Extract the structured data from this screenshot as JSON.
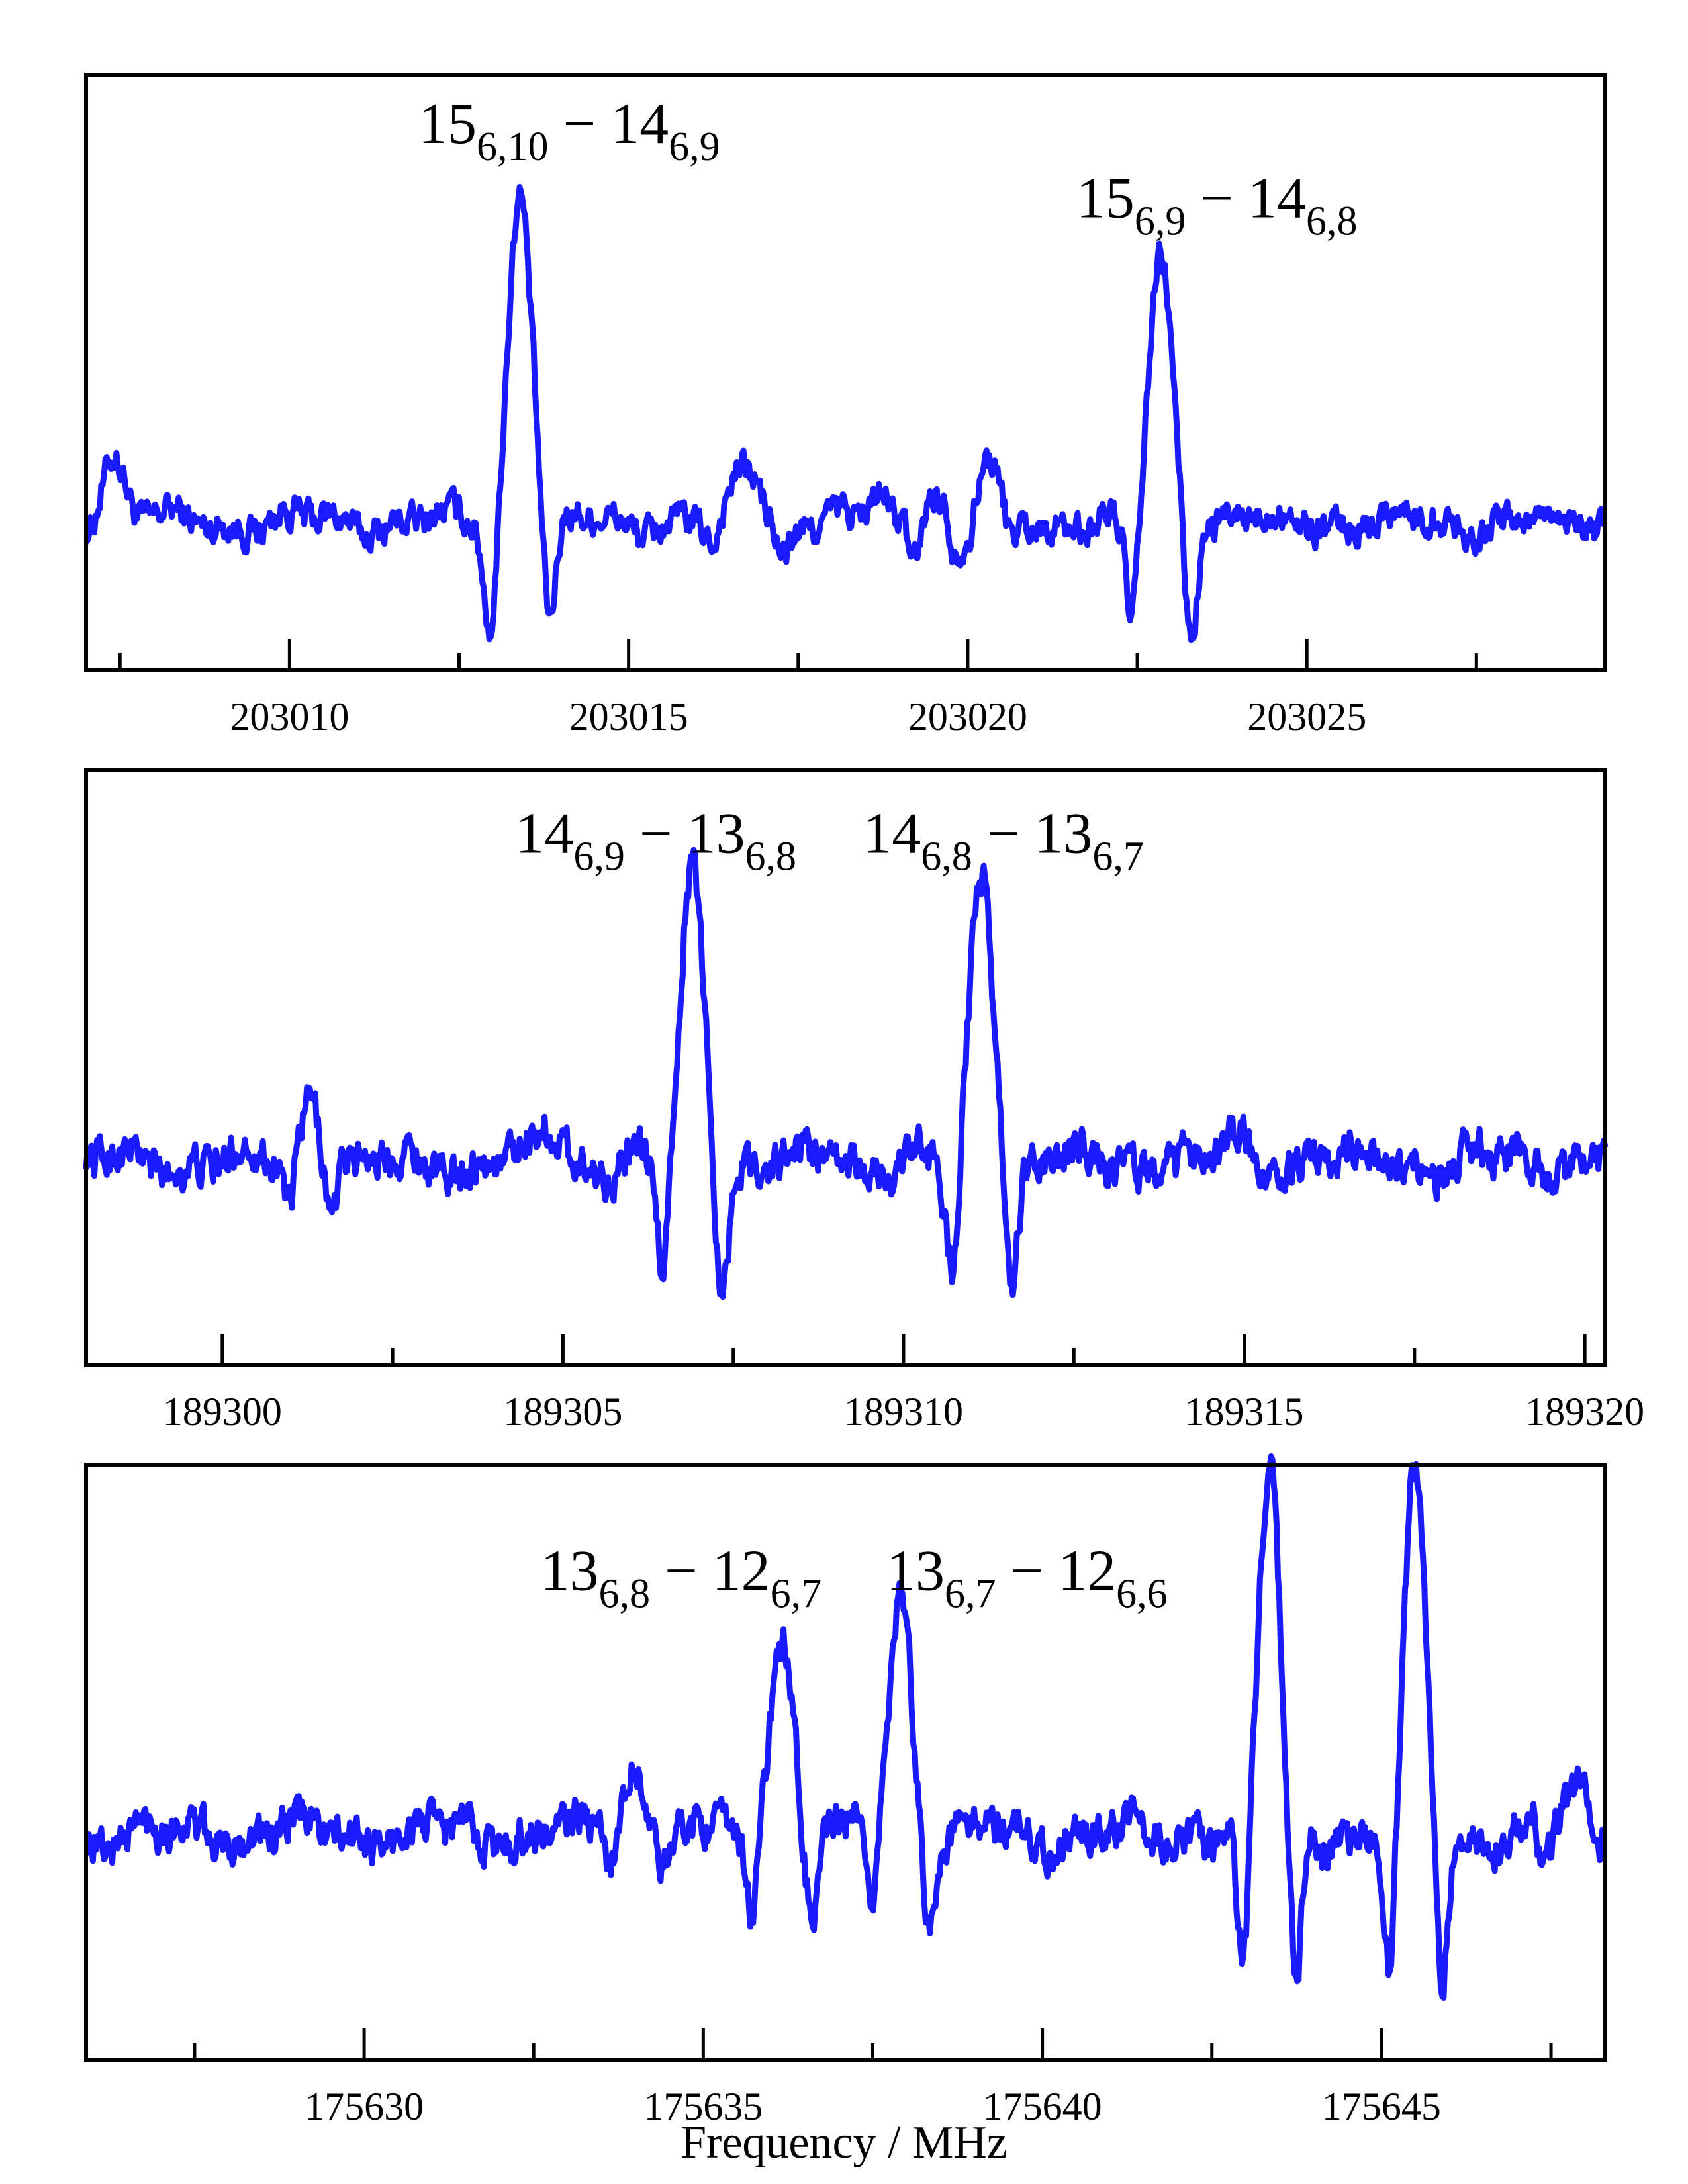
{
  "line_color": "#1a1aff",
  "xlabel": "Frequency / MHz",
  "chart_data": [
    {
      "type": "line",
      "xlim": [
        203007,
        203029.4
      ],
      "ylim": [
        -1.2,
        3.6
      ],
      "grid": false,
      "ticks_major": [
        203010,
        203015,
        203020,
        203025
      ],
      "tick_labels": [
        "203010",
        "203015",
        "203020",
        "203025"
      ],
      "ticks_minor": [
        203007.5,
        203012.5,
        203017.5,
        203022.5,
        203027.5
      ],
      "peaks": [
        {
          "x": 203013.4,
          "h": 2.7,
          "w": 0.17,
          "dip": -0.9
        },
        {
          "x": 203022.85,
          "h": 2.1,
          "w": 0.17,
          "dip": -0.9
        },
        {
          "x": 203007.4,
          "h": 0.55,
          "w": 0.17,
          "dip": 0
        },
        {
          "x": 203016.75,
          "h": 0.45,
          "w": 0.2,
          "dip": -0.25
        },
        {
          "x": 203018.7,
          "h": 0.2,
          "w": 0.12,
          "dip": 0
        },
        {
          "x": 203019.5,
          "h": 0.3,
          "w": 0.12,
          "dip": -0.25
        },
        {
          "x": 203020.3,
          "h": 0.45,
          "w": 0.13,
          "dip": -0.2
        }
      ],
      "annotations": [
        {
          "x": 203011.9,
          "y": 3.05,
          "main": "15",
          "sub": "6,10",
          "main2": "14",
          "sub2": "6,9"
        },
        {
          "x": 203021.6,
          "y": 2.45,
          "main": "15",
          "sub": "6,9",
          "main2": "14",
          "sub2": "6,8"
        }
      ]
    },
    {
      "type": "line",
      "xlim": [
        189298,
        189320.3
      ],
      "ylim": [
        -1.35,
        2.6
      ],
      "grid": false,
      "ticks_major": [
        189300,
        189305,
        189310,
        189315,
        189320
      ],
      "tick_labels": [
        "189300",
        "189305",
        "189310",
        "189315",
        "189320"
      ],
      "ticks_minor": [
        189302.5,
        189307.5,
        189312.5,
        189317.5
      ],
      "peaks": [
        {
          "x": 189306.9,
          "h": 1.9,
          "w": 0.17,
          "dip": -0.8
        },
        {
          "x": 189311.15,
          "h": 1.9,
          "w": 0.17,
          "dip": -0.8
        },
        {
          "x": 189301.3,
          "h": 0.45,
          "w": 0.12,
          "dip": -0.3
        },
        {
          "x": 189304.8,
          "h": 0.2,
          "w": 0.2,
          "dip": 0
        },
        {
          "x": 189314.8,
          "h": 0.15,
          "w": 0.2,
          "dip": 0
        }
      ],
      "annotations": [
        {
          "x": 189304.3,
          "y": 2.05,
          "main": "14",
          "sub": "6,9",
          "main2": "13",
          "sub2": "6,8"
        },
        {
          "x": 189309.4,
          "y": 2.05,
          "main": "14",
          "sub": "6,8",
          "main2": "13",
          "sub2": "6,7"
        }
      ]
    },
    {
      "type": "line",
      "xlim": [
        175625.9,
        175648.3
      ],
      "ylim": [
        -1.45,
        2.35
      ],
      "grid": false,
      "ticks_major": [
        175630,
        175635,
        175640,
        175645
      ],
      "tick_labels": [
        "175630",
        "175635",
        "175640",
        "175645"
      ],
      "ticks_minor": [
        175627.5,
        175632.5,
        175637.5,
        175642.5,
        175647.5
      ],
      "peaks": [
        {
          "x": 175636.15,
          "h": 1.3,
          "w": 0.17,
          "dip": -0.55
        },
        {
          "x": 175637.9,
          "h": 1.5,
          "w": 0.17,
          "dip": -0.55
        },
        {
          "x": 175643.35,
          "h": 2.3,
          "w": 0.15,
          "dip": -1.0
        },
        {
          "x": 175645.5,
          "h": 2.25,
          "w": 0.15,
          "dip": -1.0
        },
        {
          "x": 175634.0,
          "h": 0.45,
          "w": 0.15,
          "dip": -0.15
        },
        {
          "x": 175647.95,
          "h": 0.3,
          "w": 0.2,
          "dip": -0.2
        }
      ],
      "annotations": [
        {
          "x": 175632.6,
          "y": 1.55,
          "main": "13",
          "sub": "6,8",
          "main2": "12",
          "sub2": "6,7"
        },
        {
          "x": 175637.7,
          "y": 1.55,
          "main": "13",
          "sub": "6,7",
          "main2": "12",
          "sub2": "6,6"
        }
      ]
    }
  ]
}
